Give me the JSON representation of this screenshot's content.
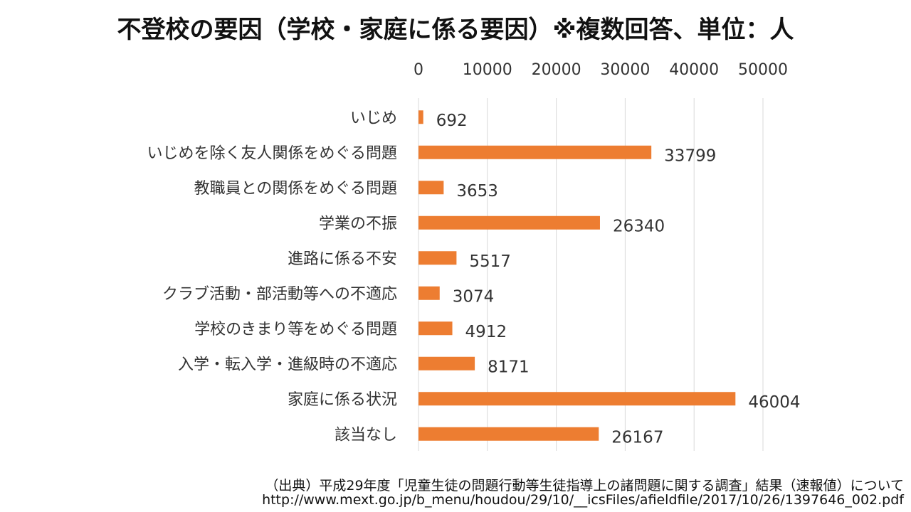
{
  "title": "不登校の要因（学校・家庭に係る要因）※複数回答、単位：人",
  "source_line1": "（出典）平成29年度「児童生徒の問題行動等生徒指導上の諸問題に関する調査」結果（速報値）について",
  "source_line2": "http://www.mext.go.jp/b_menu/houdou/29/10/__icsFiles/afieldfile/2017/10/26/1397646_002.pdf",
  "chart_data": {
    "type": "bar",
    "orientation": "horizontal",
    "title": "不登校の要因（学校・家庭に係る要因）※複数回答、単位：人",
    "xlim": [
      0,
      50000
    ],
    "x_ticks": [
      0,
      10000,
      20000,
      30000,
      40000,
      50000
    ],
    "x_tick_labels": [
      "0",
      "10000",
      "20000",
      "30000",
      "40000",
      "50000"
    ],
    "x_axis_position": "top",
    "grid": true,
    "bar_color": "#ED7D31",
    "categories": [
      "いじめ",
      "いじめを除く友人関係をめぐる問題",
      "教職員との関係をめぐる問題",
      "学業の不振",
      "進路に係る不安",
      "クラブ活動・部活動等への不適応",
      "学校のきまり等をめぐる問題",
      "入学・転入学・進級時の不適応",
      "家庭に係る状況",
      "該当なし"
    ],
    "values": [
      692,
      33799,
      3653,
      26340,
      5517,
      3074,
      4912,
      8171,
      46004,
      26167
    ],
    "data_labels": [
      "692",
      "33799",
      "3653",
      "26340",
      "5517",
      "3074",
      "4912",
      "8171",
      "46004",
      "26167"
    ]
  }
}
